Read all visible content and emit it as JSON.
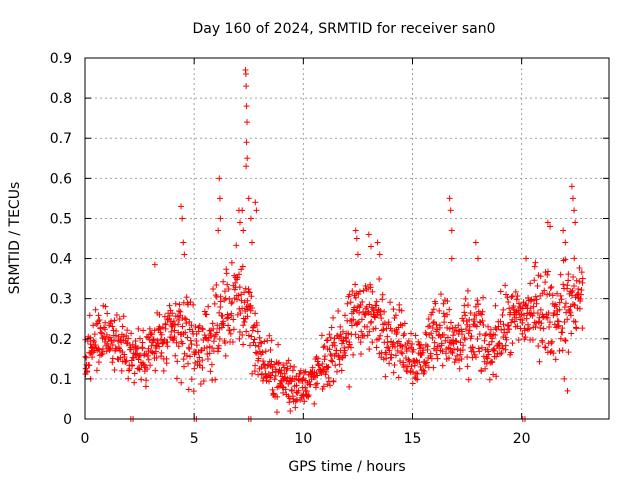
{
  "chart_data": {
    "type": "scatter",
    "title": "Day 160 of 2024, SRMTID for receiver san0",
    "xlabel": "GPS time / hours",
    "ylabel": "SRMTID / TECUs",
    "xlim": [
      0,
      24
    ],
    "ylim": [
      0,
      0.9
    ],
    "xticks": [
      "0",
      "5",
      "10",
      "15",
      "20"
    ],
    "yticks": [
      "0",
      "0.1",
      "0.2",
      "0.3",
      "0.4",
      "0.5",
      "0.6",
      "0.7",
      "0.8",
      "0.9"
    ],
    "grid": true,
    "marker": "plus",
    "color": "#ff0000",
    "series": [
      {
        "name": "SRMTID",
        "profile": [
          [
            0.0,
            0.15,
            0.05
          ],
          [
            0.5,
            0.2,
            0.05
          ],
          [
            1.0,
            0.22,
            0.06
          ],
          [
            1.5,
            0.18,
            0.05
          ],
          [
            2.0,
            0.17,
            0.05
          ],
          [
            2.5,
            0.15,
            0.05
          ],
          [
            3.0,
            0.17,
            0.06
          ],
          [
            3.5,
            0.2,
            0.06
          ],
          [
            4.0,
            0.2,
            0.07
          ],
          [
            4.5,
            0.22,
            0.09
          ],
          [
            5.0,
            0.18,
            0.07
          ],
          [
            5.5,
            0.18,
            0.06
          ],
          [
            6.0,
            0.22,
            0.07
          ],
          [
            6.5,
            0.27,
            0.08
          ],
          [
            7.0,
            0.3,
            0.09
          ],
          [
            7.5,
            0.28,
            0.09
          ],
          [
            8.0,
            0.15,
            0.05
          ],
          [
            8.5,
            0.12,
            0.05
          ],
          [
            9.0,
            0.1,
            0.05
          ],
          [
            9.5,
            0.09,
            0.05
          ],
          [
            10.0,
            0.08,
            0.03
          ],
          [
            10.5,
            0.1,
            0.04
          ],
          [
            11.0,
            0.14,
            0.05
          ],
          [
            11.5,
            0.18,
            0.05
          ],
          [
            12.0,
            0.2,
            0.06
          ],
          [
            12.5,
            0.27,
            0.07
          ],
          [
            13.0,
            0.26,
            0.07
          ],
          [
            13.5,
            0.24,
            0.07
          ],
          [
            14.0,
            0.21,
            0.06
          ],
          [
            14.5,
            0.19,
            0.06
          ],
          [
            15.0,
            0.16,
            0.05
          ],
          [
            15.5,
            0.15,
            0.05
          ],
          [
            16.0,
            0.23,
            0.06
          ],
          [
            16.5,
            0.22,
            0.06
          ],
          [
            17.0,
            0.18,
            0.06
          ],
          [
            17.5,
            0.2,
            0.07
          ],
          [
            18.0,
            0.22,
            0.07
          ],
          [
            18.5,
            0.16,
            0.05
          ],
          [
            19.0,
            0.22,
            0.06
          ],
          [
            19.5,
            0.24,
            0.06
          ],
          [
            20.0,
            0.25,
            0.06
          ],
          [
            20.5,
            0.27,
            0.07
          ],
          [
            21.0,
            0.27,
            0.08
          ],
          [
            21.5,
            0.25,
            0.07
          ],
          [
            22.0,
            0.28,
            0.08
          ],
          [
            22.5,
            0.3,
            0.08
          ],
          [
            22.8,
            0.3,
            0.06
          ]
        ],
        "spikes": [
          [
            3.2,
            0.385
          ],
          [
            4.4,
            0.53
          ],
          [
            4.45,
            0.5
          ],
          [
            4.5,
            0.44
          ],
          [
            4.55,
            0.41
          ],
          [
            6.15,
            0.6
          ],
          [
            6.18,
            0.55
          ],
          [
            6.2,
            0.5
          ],
          [
            6.1,
            0.47
          ],
          [
            7.05,
            0.52
          ],
          [
            7.1,
            0.49
          ],
          [
            7.2,
            0.52
          ],
          [
            7.25,
            0.47
          ],
          [
            7.35,
            0.87
          ],
          [
            7.37,
            0.86
          ],
          [
            7.38,
            0.83
          ],
          [
            7.4,
            0.78
          ],
          [
            7.42,
            0.74
          ],
          [
            7.4,
            0.69
          ],
          [
            7.43,
            0.65
          ],
          [
            7.38,
            0.63
          ],
          [
            7.5,
            0.55
          ],
          [
            7.6,
            0.5
          ],
          [
            7.65,
            0.44
          ],
          [
            7.8,
            0.54
          ],
          [
            7.85,
            0.52
          ],
          [
            12.4,
            0.47
          ],
          [
            12.45,
            0.45
          ],
          [
            12.5,
            0.41
          ],
          [
            13.0,
            0.46
          ],
          [
            13.1,
            0.43
          ],
          [
            13.4,
            0.44
          ],
          [
            13.5,
            0.41
          ],
          [
            16.7,
            0.55
          ],
          [
            16.75,
            0.52
          ],
          [
            16.8,
            0.47
          ],
          [
            16.8,
            0.4
          ],
          [
            17.9,
            0.44
          ],
          [
            18.0,
            0.4
          ],
          [
            20.2,
            0.4
          ],
          [
            20.6,
            0.38
          ],
          [
            21.2,
            0.49
          ],
          [
            21.3,
            0.48
          ],
          [
            21.9,
            0.47
          ],
          [
            22.0,
            0.44
          ],
          [
            22.3,
            0.58
          ],
          [
            22.35,
            0.55
          ],
          [
            22.4,
            0.52
          ],
          [
            22.45,
            0.49
          ],
          [
            22.1,
            0.07
          ],
          [
            21.95,
            0.1
          ],
          [
            12.1,
            0.08
          ],
          [
            9.4,
            0.02
          ]
        ],
        "zeros": [
          2.1,
          2.2,
          5.0,
          5.1,
          7.5,
          7.6,
          20.05,
          20.15
        ]
      }
    ]
  }
}
